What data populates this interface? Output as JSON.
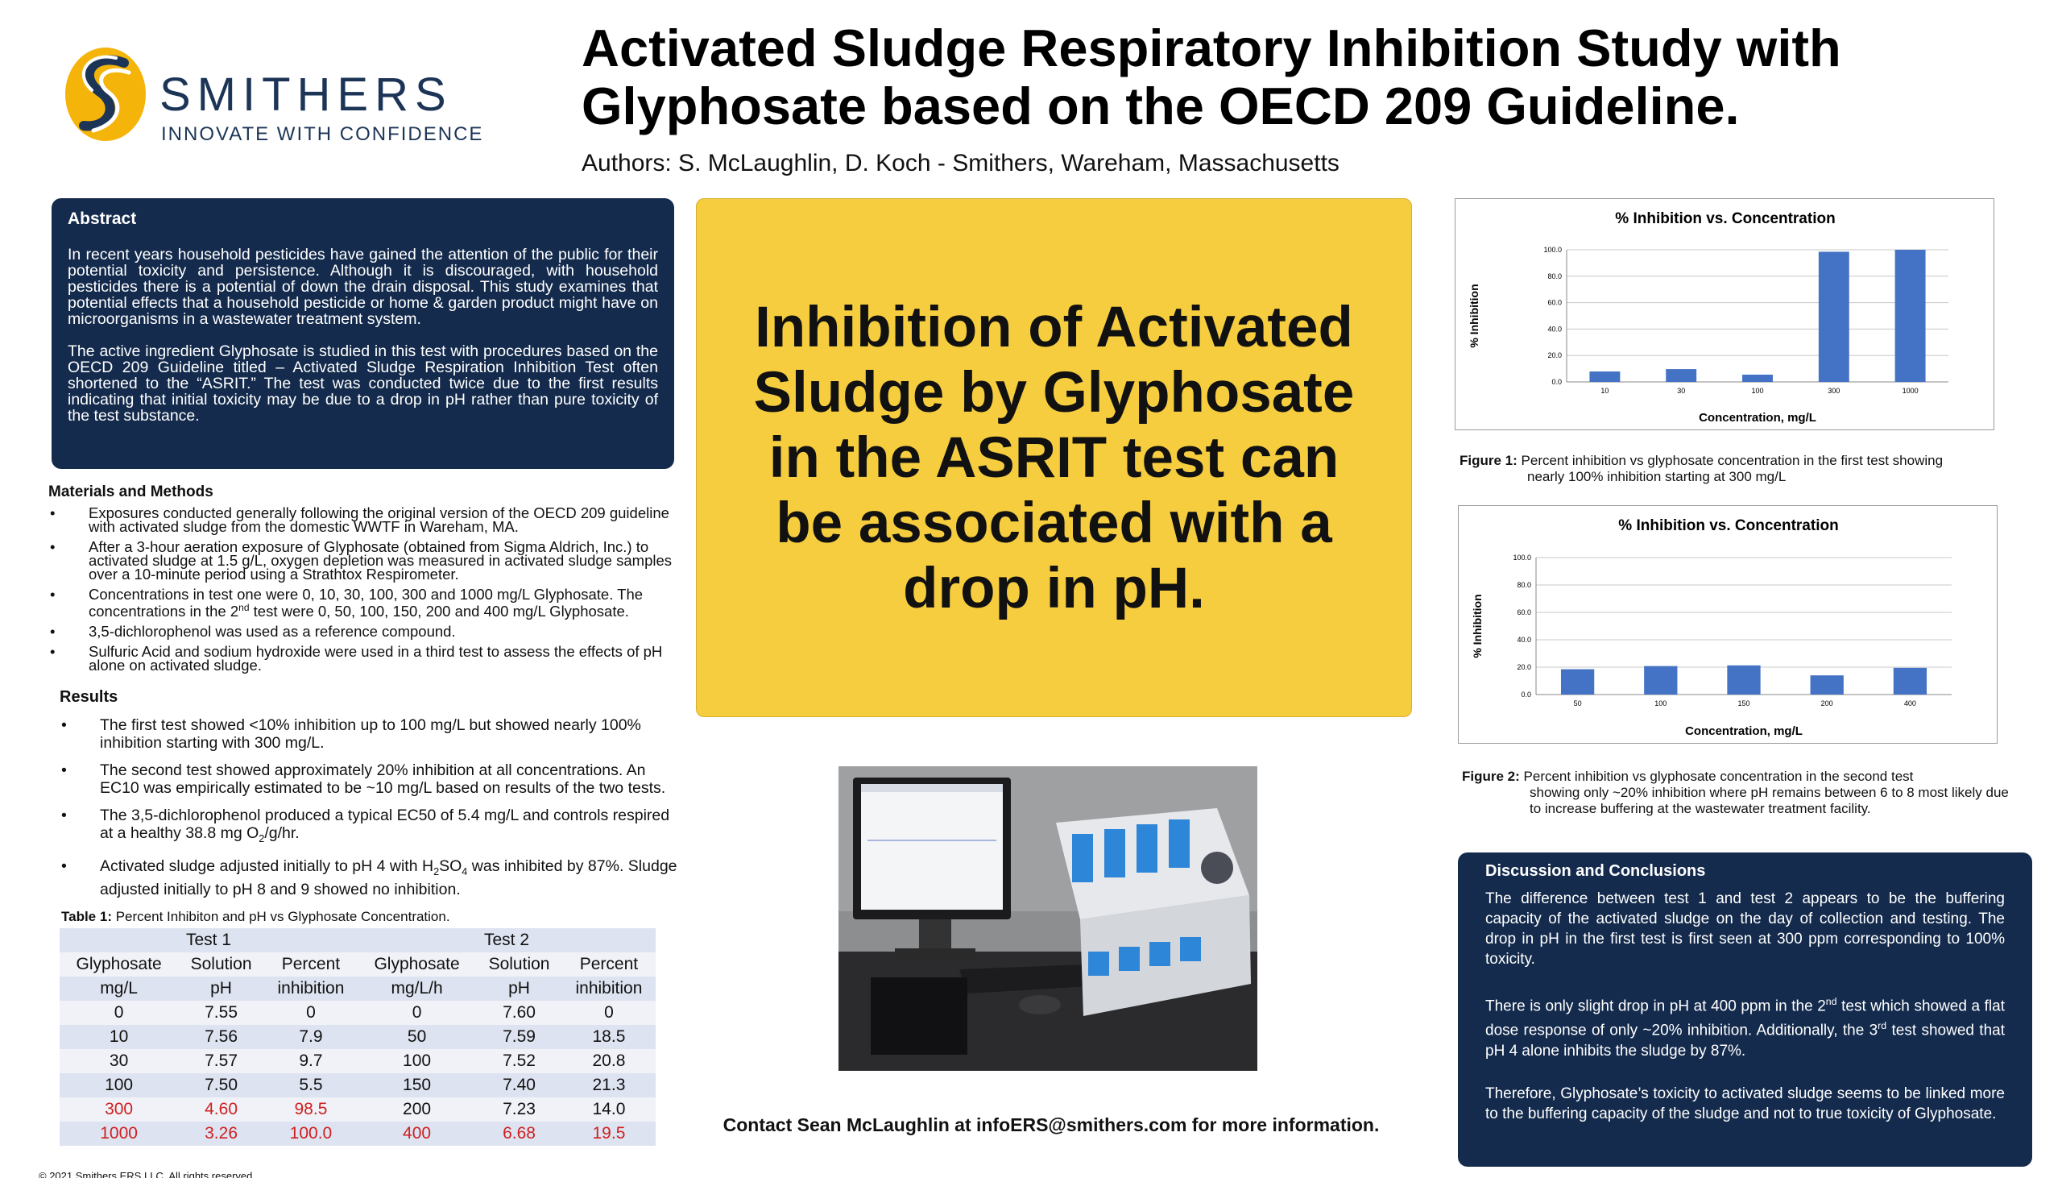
{
  "logo": {
    "name": "SMITHERS",
    "tagline": "INNOVATE WITH CONFIDENCE"
  },
  "title": "Activated Sludge Respiratory Inhibition Study with Glyphosate based on the OECD 209 Guideline.",
  "authors": "Authors: S. McLaughlin, D. Koch - Smithers, Wareham, Massachusetts",
  "abstract": {
    "heading": "Abstract",
    "p1": "In recent years household pesticides have gained the attention of the public for their potential toxicity and persistence.  Although it is discouraged, with household pesticides there is a potential of down the drain disposal.  This study examines that potential effects that a household pesticide or home & garden product might have on microorganisms in a wastewater treatment system.",
    "p2": "The active ingredient Glyphosate is studied in this test with procedures based on the OECD 209 Guideline titled – Activated Sludge Respiration Inhibition Test often shortened to the “ASRIT.”  The test was conducted twice due to the first results indicating that initial toxicity may be due to a drop in pH rather than pure toxicity of the test substance."
  },
  "methods": {
    "heading": "Materials and Methods",
    "items": [
      "Exposures conducted generally following the original version of the OECD 209 guideline with activated sludge from the domestic WWTF in Wareham, MA.",
      "After a 3-hour aeration exposure of Glyphosate (obtained from Sigma Aldrich, Inc.) to activated sludge at 1.5 g/L, oxygen depletion was measured in activated sludge samples over a 10-minute period using a Strathtox Respirometer.",
      "3,5-dichlorophenol was used as a reference compound.",
      "Sulfuric Acid and sodium hydroxide were used in a third test to assess the effects of pH alone on activated sludge."
    ],
    "conc_a": "Concentrations in test one were 0, 10, 30, 100, 300 and 1000 mg/L Glyphosate. The concentrations in the 2",
    "conc_sup": "nd",
    "conc_b": " test were 0, 50, 100, 150, 200 and 400 mg/L Glyphosate."
  },
  "results": {
    "heading": "Results",
    "items": [
      "The first test showed <10% inhibition up to 100 mg/L but showed nearly 100% inhibition starting with 300 mg/L.",
      "The second test showed approximately 20% inhibition at all concentrations.  An EC10 was empirically estimated to be ~10 mg/L based on results of the two tests."
    ],
    "ref_a": "The 3,5-dichlorophenol produced a typical EC50 of 5.4 mg/L and controls respired at a healthy 38.8 mg O",
    "ref_sub": "2",
    "ref_b": "/g/hr.",
    "ph_a": "Activated sludge adjusted initially to pH 4 with H",
    "ph_sub1": "2",
    "ph_mid": "SO",
    "ph_sub2": "4",
    "ph_b": " was inhibited by 87%.  Sludge adjusted initially to pH 8 and 9 showed no inhibition."
  },
  "table": {
    "caption_bold": "Table 1:",
    "caption": " Percent Inhibiton and pH vs Glyphosate Concentration.",
    "group1": "Test 1",
    "group2": "Test 2",
    "h1": [
      "Glyphosate",
      "Solution",
      "Percent",
      "Glyphosate",
      "Solution",
      "Percent"
    ],
    "h2": [
      "mg/L",
      "pH",
      "inhibition",
      "mg/L/h",
      "pH",
      "inhibition"
    ],
    "rows": [
      [
        "0",
        "7.55",
        "0",
        "0",
        "7.60",
        "0"
      ],
      [
        "10",
        "7.56",
        "7.9",
        "50",
        "7.59",
        "18.5"
      ],
      [
        "30",
        "7.57",
        "9.7",
        "100",
        "7.52",
        "20.8"
      ],
      [
        "100",
        "7.50",
        "5.5",
        "150",
        "7.40",
        "21.3"
      ],
      [
        "300",
        "4.60",
        "98.5",
        "200",
        "7.23",
        "14.0"
      ],
      [
        "1000",
        "3.26",
        "100.0",
        "400",
        "6.68",
        "19.5"
      ]
    ]
  },
  "key_message": "Inhibition of Activated Sludge by Glyphosate in the ASRIT test can be associated with a drop in pH.",
  "chart_data": [
    {
      "type": "bar",
      "title": "% Inhibition vs. Concentration",
      "xlabel": "Concentration, mg/L",
      "ylabel": "% Inhibition",
      "categories": [
        "10",
        "30",
        "100",
        "300",
        "1000"
      ],
      "values": [
        7.9,
        9.7,
        5.5,
        98.5,
        100.0
      ],
      "yticks": [
        "0.0",
        "20.0",
        "40.0",
        "60.0",
        "80.0",
        "100.0"
      ],
      "ylim": [
        0,
        100
      ],
      "grid": true,
      "color": "#4472c4"
    },
    {
      "type": "bar",
      "title": "% Inhibition vs. Concentration",
      "xlabel": "Concentration, mg/L",
      "ylabel": "% Inhibition",
      "categories": [
        "50",
        "100",
        "150",
        "200",
        "400"
      ],
      "values": [
        18.5,
        20.8,
        21.3,
        14.0,
        19.5
      ],
      "yticks": [
        "0.0",
        "20.0",
        "40.0",
        "60.0",
        "80.0",
        "100.0"
      ],
      "ylim": [
        0,
        100
      ],
      "grid": true,
      "color": "#4472c4"
    }
  ],
  "fig1": {
    "label": "Figure 1:",
    "line1": " Percent inhibition vs glyphosate concentration in the first test showing",
    "line2": "nearly 100% inhibition starting at 300 mg/L"
  },
  "fig2": {
    "label": "Figure 2:",
    "line1": " Percent inhibition vs glyphosate concentration in the second test",
    "line2": "showing only ~20% inhibition where pH remains between 6 to 8 most likely due to increase buffering at the wastewater treatment facility."
  },
  "discussion": {
    "heading": "Discussion and Conclusions",
    "p1": "The difference between test 1 and test 2 appears to be the buffering capacity of the activated sludge on the day of collection and testing.  The drop in pH in the first test is first seen at 300 ppm corresponding to 100% toxicity.",
    "p2a": "There is only slight drop in pH at 400 ppm in the 2",
    "p2sup": "nd",
    "p2b": " test which showed a flat dose response of only ~20% inhibition.  Additionally, the 3",
    "p2sup2": "rd",
    "p2c": " test showed that pH 4 alone inhibits the sludge by 87%.",
    "p3": "Therefore, Glyphosate’s toxicity to activated sludge seems to be linked more to the buffering capacity of the sludge and not to true toxicity of Glyphosate."
  },
  "contact": "Contact Sean McLaughlin at infoERS@smithers.com for more information.",
  "copyright": "© 2021 Smithers ERS LLC. All rights reserved",
  "colors": {
    "navy": "#142b4d",
    "yellow": "#f6cd3f",
    "bar": "#4472c4",
    "red": "#d01f1f"
  }
}
